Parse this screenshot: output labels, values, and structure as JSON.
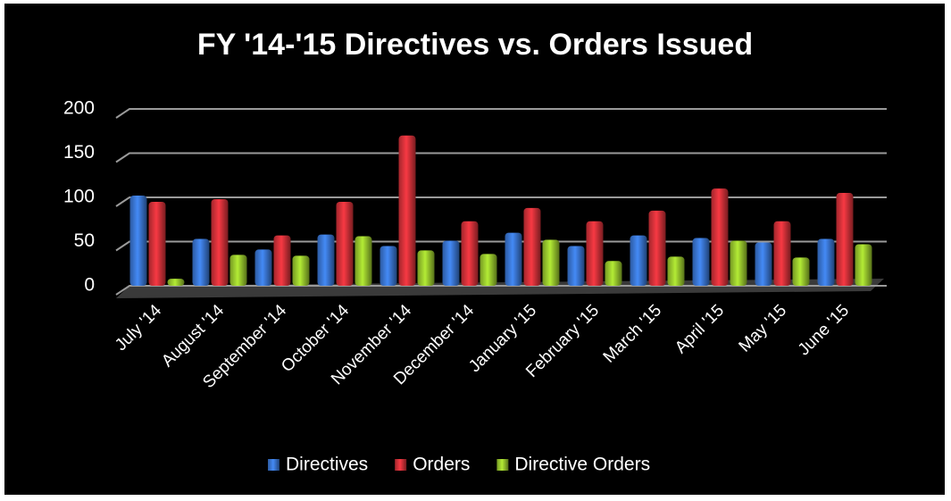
{
  "chart_data": {
    "type": "bar",
    "title": "FY '14-'15 Directives vs. Orders Issued",
    "categories": [
      "July '14",
      "August '14",
      "September '14",
      "October '14",
      "November '14",
      "December '14",
      "January '15",
      "February '15",
      "March '15",
      "April '15",
      "May '15",
      "June '15"
    ],
    "series": [
      {
        "name": "Directives",
        "color": "#3b78d6",
        "values": [
          102,
          53,
          41,
          58,
          45,
          51,
          60,
          45,
          57,
          54,
          49,
          53
        ]
      },
      {
        "name": "Orders",
        "color": "#d8323a",
        "values": [
          95,
          98,
          57,
          95,
          170,
          73,
          88,
          73,
          85,
          110,
          73,
          105
        ]
      },
      {
        "name": "Directive Orders",
        "color": "#9ccc2e",
        "values": [
          8,
          35,
          34,
          56,
          40,
          36,
          52,
          28,
          33,
          51,
          32,
          47
        ]
      }
    ],
    "ylim": [
      0,
      200
    ],
    "yticks": [
      0,
      50,
      100,
      150,
      200
    ],
    "grid": true,
    "legend": "bottom"
  }
}
